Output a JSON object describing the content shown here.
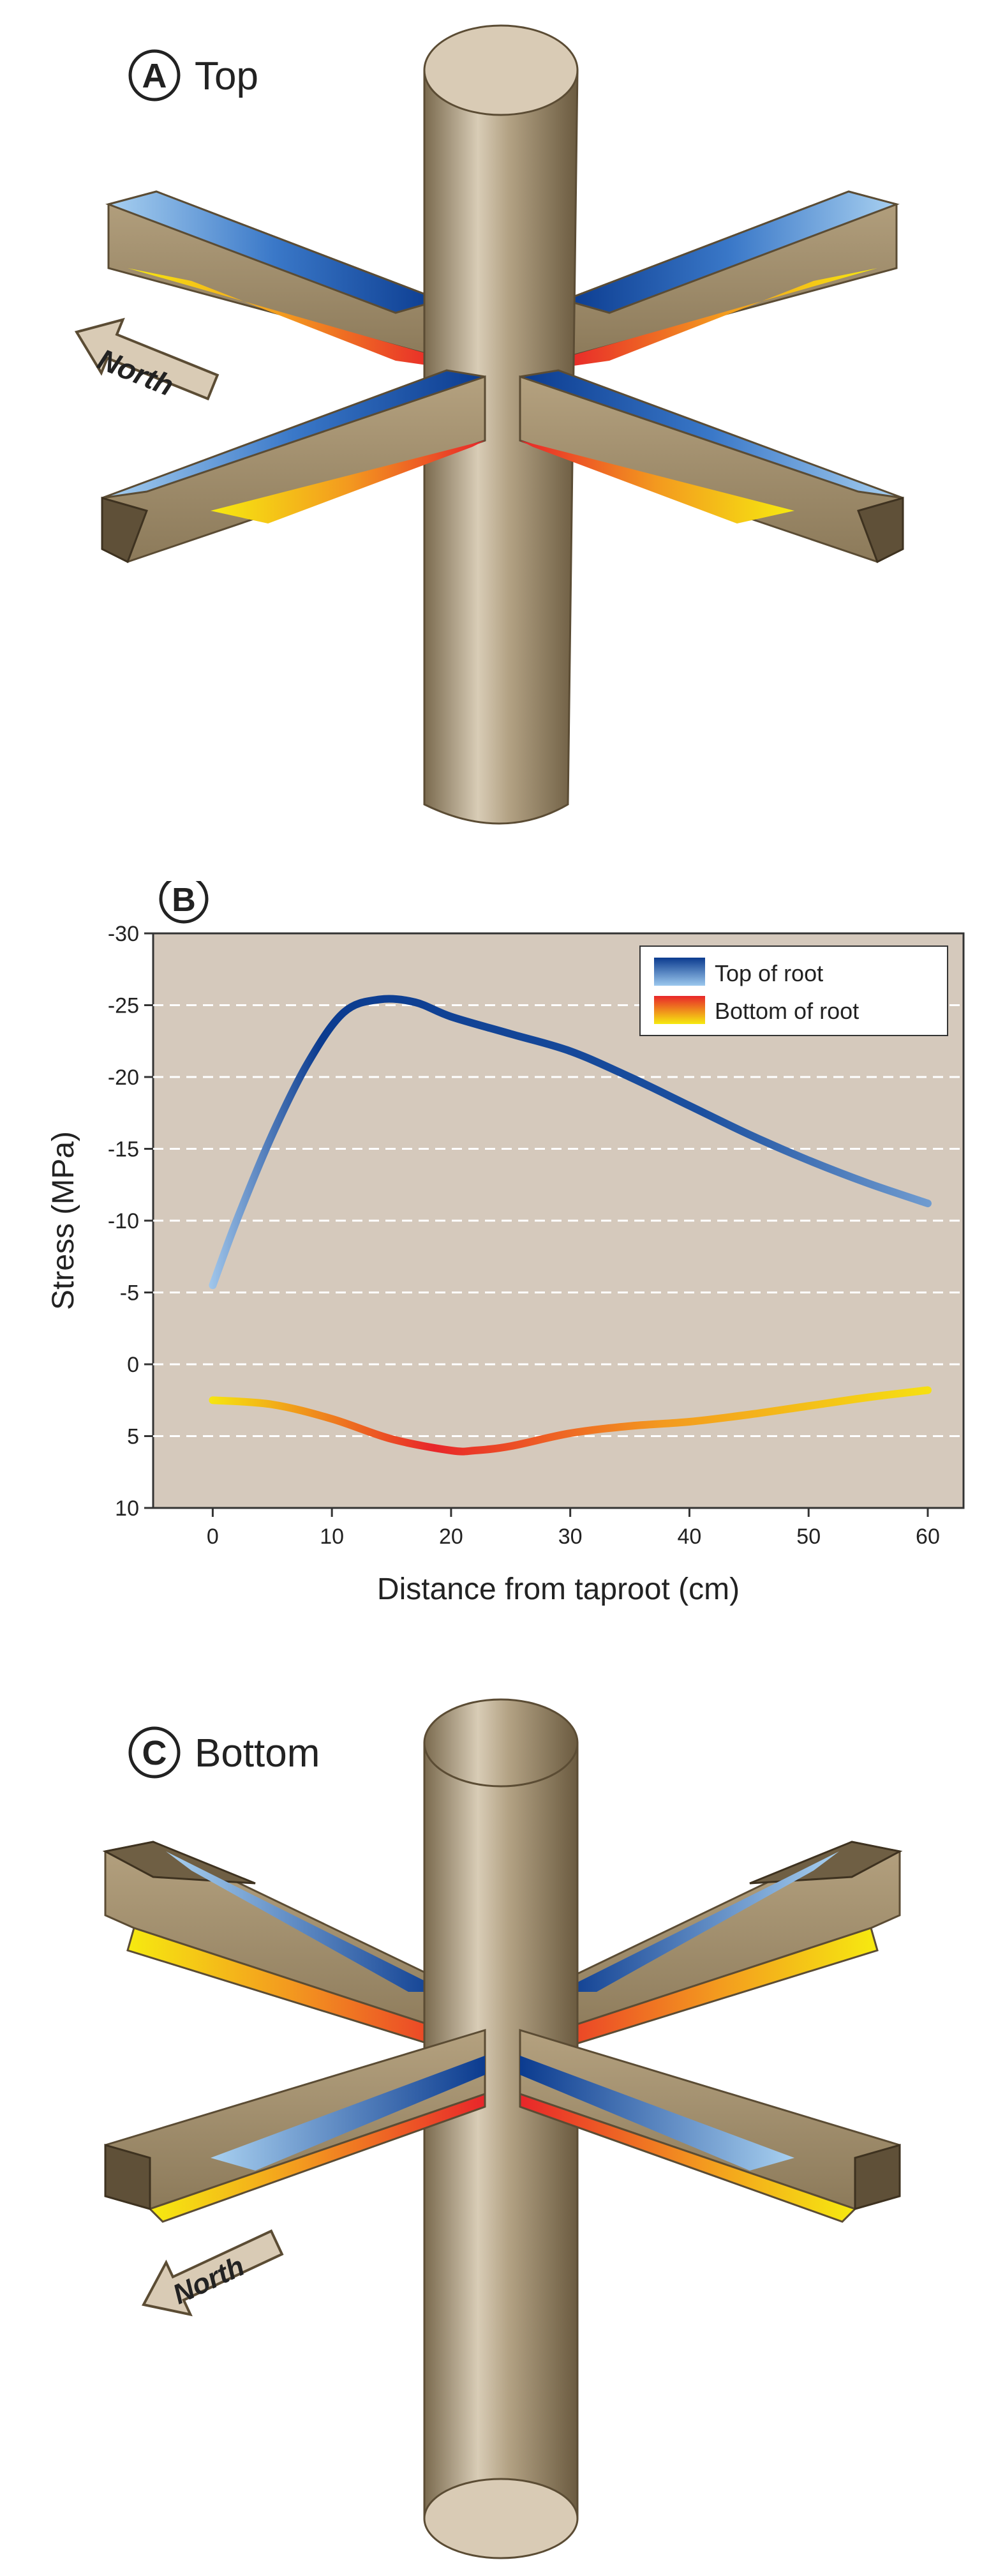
{
  "panel_a": {
    "letter": "A",
    "title": "Top",
    "north_label": "North"
  },
  "panel_c": {
    "letter": "C",
    "title": "Bottom",
    "north_label": "North"
  },
  "panel_b": {
    "letter": "B"
  },
  "colors": {
    "wood_light": "#c9b79a",
    "wood_mid": "#9d8a6c",
    "wood_dark": "#6f5f44",
    "blue_dark": "#0b3b8f",
    "blue_light": "#9cc8ee",
    "red": "#e8262a",
    "orange": "#f39a1f",
    "yellow": "#f6ea10",
    "plot_bg": "#d5c9bc"
  },
  "chart_data": {
    "type": "line",
    "xlabel": "Distance from taproot (cm)",
    "ylabel": "Stress (MPa)",
    "xlim": [
      -5,
      63
    ],
    "ylim": [
      -30,
      10
    ],
    "y_inverted": true,
    "xticks": [
      0,
      10,
      20,
      30,
      40,
      50,
      60
    ],
    "xtick_labels": [
      "0",
      "10",
      "20",
      "30",
      "40",
      "50",
      "60"
    ],
    "yticks": [
      -30,
      -25,
      -20,
      -15,
      -10,
      -5,
      0,
      5,
      10
    ],
    "ytick_labels": [
      "-30",
      "-25",
      "-20",
      "-15",
      "-10",
      "-5",
      "0",
      "5",
      "10"
    ],
    "gridlines_y": [
      -25,
      -20,
      -15,
      -10,
      -5,
      0,
      5
    ],
    "legend_position": "top-right",
    "series": [
      {
        "name": "Top of root",
        "x": [
          0,
          2,
          5,
          8,
          11,
          14,
          17,
          20,
          25,
          30,
          35,
          40,
          45,
          50,
          55,
          60
        ],
        "y": [
          -5.5,
          -10,
          -16,
          -21,
          -24.5,
          -25.4,
          -25.2,
          -24.2,
          -23,
          -21.8,
          -20,
          -18,
          -16,
          -14.2,
          -12.6,
          -11.2
        ]
      },
      {
        "name": "Bottom of root",
        "x": [
          0,
          5,
          10,
          15,
          20,
          22,
          25,
          30,
          35,
          40,
          45,
          50,
          55,
          60
        ],
        "y": [
          2.5,
          2.8,
          3.8,
          5.2,
          6,
          6,
          5.7,
          4.8,
          4.3,
          4,
          3.5,
          2.9,
          2.3,
          1.8
        ]
      }
    ]
  }
}
